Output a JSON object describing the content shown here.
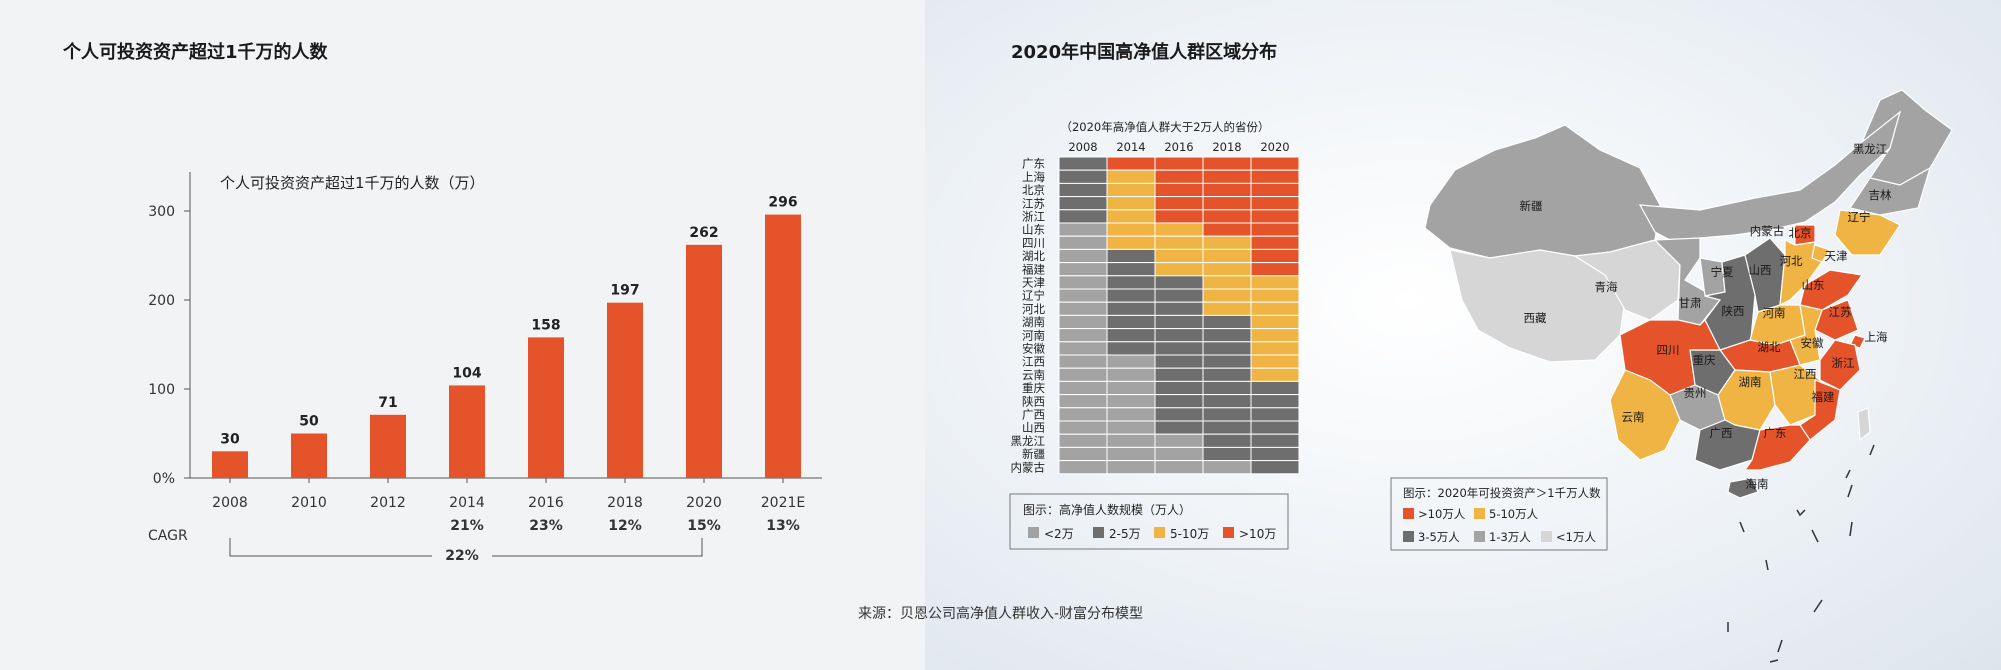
{
  "colors": {
    "orange": "#e5532a",
    "yellow": "#efb443",
    "dark_gray": "#6e6e6e",
    "mid_gray": "#a3a3a3",
    "light_gray": "#d6d6d6",
    "bar_color": "#e5532a"
  },
  "left_panel": {
    "title": "个人可投资资产超过1千万的人数"
  },
  "right_panel": {
    "title": "2020年中国高净值人群区域分布"
  },
  "chart_data": [
    {
      "type": "bar",
      "title": "个人可投资资产超过1千万的人数（万）",
      "categories": [
        "2008",
        "2010",
        "2012",
        "2014",
        "2016",
        "2018",
        "2020",
        "2021E"
      ],
      "values": [
        30,
        50,
        71,
        104,
        158,
        197,
        262,
        296
      ],
      "yticks": [
        "0%",
        "100",
        "200",
        "300"
      ],
      "ylim": [
        0,
        330
      ],
      "cagr_label": "CAGR",
      "cagr_values": [
        "",
        "",
        "",
        "21%",
        "23%",
        "12%",
        "15%",
        "13%"
      ],
      "cagr_overall": "22%",
      "grid": false
    },
    {
      "type": "heatmap",
      "title": "（2020年高净值人群大于2万人的省份）",
      "columns": [
        "2008",
        "2014",
        "2016",
        "2018",
        "2020"
      ],
      "rows": [
        "广东",
        "上海",
        "北京",
        "江苏",
        "浙江",
        "山东",
        "四川",
        "湖北",
        "福建",
        "天津",
        "辽宁",
        "河北",
        "湖南",
        "河南",
        "安徽",
        "江西",
        "云南",
        "重庆",
        "陕西",
        "广西",
        "山西",
        "黑龙江",
        "新疆",
        "内蒙古"
      ],
      "cells": [
        [
          2,
          4,
          4,
          4,
          4
        ],
        [
          2,
          3,
          4,
          4,
          4
        ],
        [
          2,
          3,
          4,
          4,
          4
        ],
        [
          2,
          3,
          4,
          4,
          4
        ],
        [
          2,
          3,
          4,
          4,
          4
        ],
        [
          1,
          3,
          3,
          4,
          4
        ],
        [
          1,
          3,
          3,
          3,
          4
        ],
        [
          1,
          2,
          3,
          3,
          4
        ],
        [
          1,
          2,
          3,
          3,
          4
        ],
        [
          1,
          2,
          2,
          3,
          3
        ],
        [
          1,
          2,
          2,
          3,
          3
        ],
        [
          1,
          2,
          2,
          3,
          3
        ],
        [
          1,
          2,
          2,
          2,
          3
        ],
        [
          1,
          2,
          2,
          2,
          3
        ],
        [
          1,
          2,
          2,
          2,
          3
        ],
        [
          1,
          1,
          2,
          2,
          3
        ],
        [
          1,
          1,
          2,
          2,
          3
        ],
        [
          1,
          1,
          2,
          2,
          2
        ],
        [
          1,
          1,
          2,
          2,
          2
        ],
        [
          1,
          1,
          2,
          2,
          2
        ],
        [
          1,
          1,
          2,
          2,
          2
        ],
        [
          1,
          1,
          1,
          2,
          2
        ],
        [
          1,
          1,
          1,
          2,
          2
        ],
        [
          1,
          1,
          1,
          1,
          2
        ]
      ],
      "legend_title": "图示：高净值人数规模（万人）",
      "legend": [
        "<2万",
        "2-5万",
        "5-10万",
        ">10万"
      ]
    }
  ],
  "map": {
    "legend_title": "图示：2020年可投资资产＞1千万人数",
    "legend": [
      ">10万人",
      "5-10万人",
      "3-5万人",
      "1-3万人",
      "<1万人"
    ],
    "labels": [
      "黑龙江",
      "吉林",
      "辽宁",
      "内蒙古",
      "北京",
      "天津",
      "河北",
      "山西",
      "宁夏",
      "新疆",
      "青海",
      "甘肃",
      "陕西",
      "河南",
      "山东",
      "江苏",
      "西藏",
      "四川",
      "重庆",
      "湖北",
      "安徽",
      "上海",
      "浙江",
      "湖南",
      "江西",
      "贵州",
      "云南",
      "广西",
      "广东",
      "福建",
      "海南"
    ]
  },
  "source": "来源：贝恩公司高净值人群收入-财富分布模型"
}
